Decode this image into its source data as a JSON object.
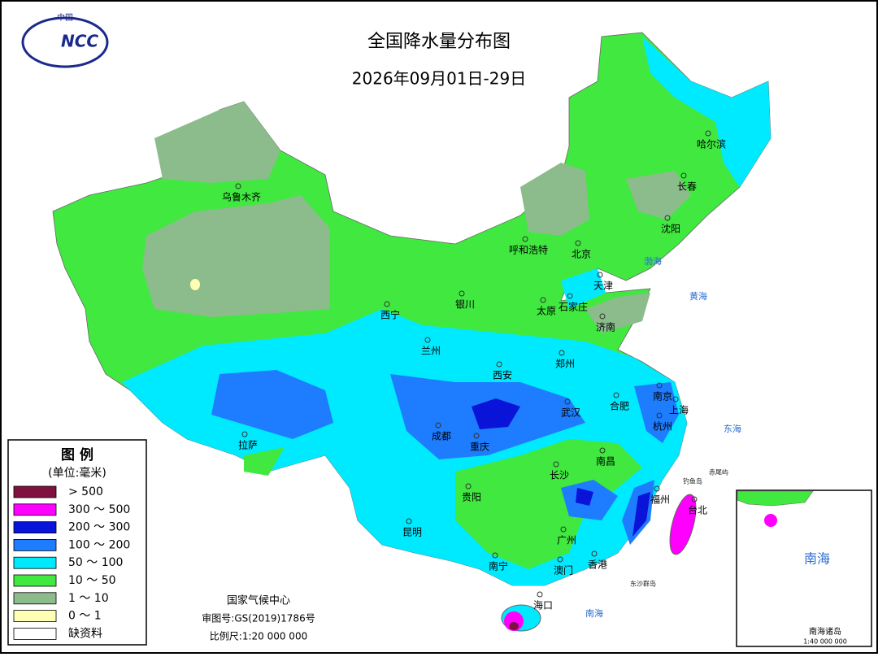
{
  "header": {
    "title": "全国降水量分布图",
    "subtitle": "2026年09月01日-29日"
  },
  "logo": {
    "top": "中国",
    "text": "NCC"
  },
  "legend": {
    "title": "图 例",
    "unit": "(单位:毫米)",
    "items": [
      {
        "label": "> 500",
        "color": "#7f1040"
      },
      {
        "label": "300 ～ 500",
        "color": "#ff00ff"
      },
      {
        "label": "200 ～ 300",
        "color": "#0a14d8"
      },
      {
        "label": "100 ～ 200",
        "color": "#1e7cff"
      },
      {
        "label": "50 ～ 100",
        "color": "#00eaff"
      },
      {
        "label": "10 ～ 50",
        "color": "#40e840"
      },
      {
        "label": "1 ～ 10",
        "color": "#8cbc8c"
      },
      {
        "label": "0 ～ 1",
        "color": "#ffffb4"
      },
      {
        "label": "缺资料",
        "color": "#ffffff"
      }
    ]
  },
  "cities": [
    "乌鲁木齐",
    "哈尔滨",
    "长春",
    "沈阳",
    "呼和浩特",
    "北京",
    "天津",
    "石家庄",
    "太原",
    "银川",
    "西宁",
    "济南",
    "兰州",
    "郑州",
    "西安",
    "南京",
    "合肥",
    "上海",
    "武汉",
    "杭州",
    "拉萨",
    "成都",
    "重庆",
    "南昌",
    "长沙",
    "贵阳",
    "福州",
    "台北",
    "昆明",
    "广州",
    "南宁",
    "澳门",
    "香港",
    "海口"
  ],
  "islands": [
    "赤尾屿",
    "钓鱼岛",
    "东沙群岛"
  ],
  "seas": [
    "渤海",
    "黄海",
    "东海",
    "南海"
  ],
  "footer": {
    "agency": "国家气候中心",
    "approval": "审图号:GS(2019)1786号",
    "scale": "比例尺:1:20 000 000"
  },
  "inset": {
    "sea": "南海",
    "title": "南海诸岛",
    "scale": "1:40 000 000"
  }
}
